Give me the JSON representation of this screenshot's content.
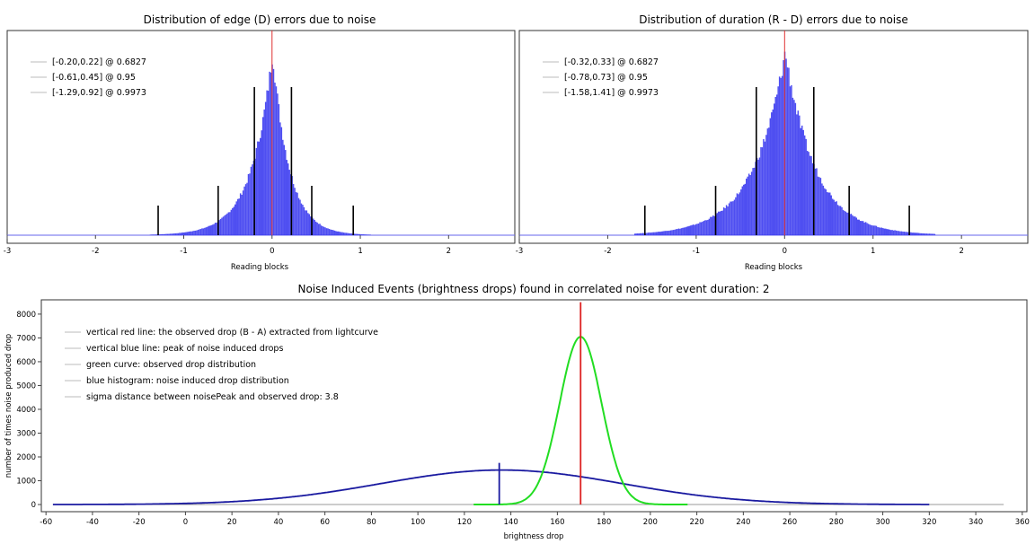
{
  "chart_data": [
    {
      "type": "histogram",
      "title": "Distribution of edge (D) errors due to noise",
      "xlabel": "Reading blocks",
      "ylabel": "",
      "xlim": [
        -3,
        2.75
      ],
      "x_ticks": [
        "-3",
        "-2",
        "-1",
        "0",
        "1",
        "2"
      ],
      "histogram": {
        "color": "#3b3bf0",
        "center": 0.0,
        "spread_left": 0.24,
        "spread_right": 0.19
      },
      "center_line": {
        "x": 0.0,
        "color": "#e03030"
      },
      "confidence_intervals": [
        {
          "label": "[-0.20,0.22] @ 0.6827",
          "low": -0.2,
          "high": 0.22,
          "level": 0.6827
        },
        {
          "label": "[-0.61,0.45] @ 0.95",
          "low": -0.61,
          "high": 0.45,
          "level": 0.95
        },
        {
          "label": "[-1.29,0.92] @ 0.9973",
          "low": -1.29,
          "high": 0.92,
          "level": 0.9973
        }
      ]
    },
    {
      "type": "histogram",
      "title": "Distribution of duration (R - D) errors due to noise",
      "xlabel": "Reading blocks",
      "ylabel": "",
      "xlim": [
        -3,
        2.75
      ],
      "x_ticks": [
        "-3",
        "-2",
        "-1",
        "0",
        "1",
        "2"
      ],
      "histogram": {
        "color": "#3b3bf0",
        "center": 0.0,
        "spread_left": 0.36,
        "spread_right": 0.34
      },
      "center_line": {
        "x": 0.0,
        "color": "#e03030"
      },
      "confidence_intervals": [
        {
          "label": "[-0.32,0.33] @ 0.6827",
          "low": -0.32,
          "high": 0.33,
          "level": 0.6827
        },
        {
          "label": "[-0.78,0.73] @ 0.95",
          "low": -0.78,
          "high": 0.73,
          "level": 0.95
        },
        {
          "label": "[-1.58,1.41] @ 0.9973",
          "low": -1.58,
          "high": 1.41,
          "level": 0.9973
        }
      ]
    },
    {
      "type": "line",
      "title": "Noise Induced Events (brightness drops) found in correlated noise for event duration: 2",
      "xlabel": "brightness drop",
      "ylabel": "number of times noise produced drop",
      "xlim": [
        -62,
        362
      ],
      "ylim": [
        -300,
        8600
      ],
      "x_ticks": [
        "-60",
        "-40",
        "-20",
        "0",
        "20",
        "40",
        "60",
        "80",
        "100",
        "120",
        "140",
        "160",
        "180",
        "200",
        "220",
        "240",
        "260",
        "280",
        "300",
        "320",
        "340",
        "360"
      ],
      "y_ticks": [
        "0",
        "1000",
        "2000",
        "3000",
        "4000",
        "5000",
        "6000",
        "7000",
        "8000"
      ],
      "series": [
        {
          "name": "blue histogram: noise induced drop distribution",
          "color": "#1a1aa0",
          "peak_x": 136,
          "peak_y": 1450,
          "sigma": 52,
          "x_range": [
            -57,
            320
          ]
        },
        {
          "name": "green curve: observed drop distribution",
          "color": "#22dd22",
          "peak_x": 170,
          "peak_y": 7050,
          "sigma": 9,
          "x_range": [
            124,
            216
          ]
        }
      ],
      "vertical_lines": [
        {
          "name": "vertical red line: the observed drop (B - A) extracted from lightcurve",
          "x": 170,
          "y_top": 8500,
          "color": "#dd2222"
        },
        {
          "name": "vertical blue line: peak of noise induced drops",
          "x": 135,
          "y_top": 1750,
          "color": "#1a1aa0"
        }
      ],
      "baseline": {
        "x_range": [
          -57,
          352
        ],
        "color": "#999999"
      },
      "legend_entries": [
        "vertical red line: the observed drop (B - A) extracted from lightcurve",
        "vertical blue line: peak of noise induced drops",
        "green curve: observed drop distribution",
        "blue histogram: noise induced drop distribution",
        "sigma distance between noisePeak and observed drop: 3.8"
      ]
    }
  ]
}
